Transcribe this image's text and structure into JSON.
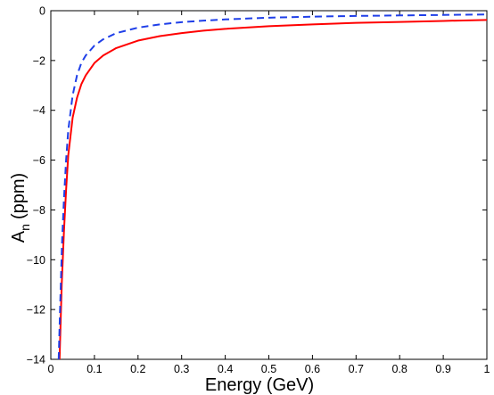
{
  "chart_data": {
    "type": "line",
    "title": "",
    "xlabel": "Energy (GeV)",
    "ylabel": {
      "main": "A",
      "subscript": "n",
      "unit": "(ppm)"
    },
    "xlim": [
      0,
      1
    ],
    "ylim": [
      -14,
      0
    ],
    "x_ticks": [
      0,
      0.1,
      0.2,
      0.3,
      0.4,
      0.5,
      0.6,
      0.7,
      0.8,
      0.9,
      1
    ],
    "x_tick_labels": [
      "0",
      "0.1",
      "0.2",
      "0.3",
      "0.4",
      "0.5",
      "0.6",
      "0.7",
      "0.8",
      "0.9",
      "1"
    ],
    "y_ticks": [
      0,
      -2,
      -4,
      -6,
      -8,
      -10,
      -12,
      -14
    ],
    "y_tick_labels": [
      "0",
      "−2",
      "−4",
      "−6",
      "−8",
      "−10",
      "−12",
      "−14"
    ],
    "grid": false,
    "series": [
      {
        "style": "solid",
        "color": "#ff0000",
        "x": [
          0.02,
          0.025,
          0.03,
          0.035,
          0.04,
          0.05,
          0.06,
          0.07,
          0.08,
          0.1,
          0.12,
          0.15,
          0.2,
          0.25,
          0.3,
          0.35,
          0.4,
          0.5,
          0.6,
          0.7,
          0.8,
          0.9,
          1.0
        ],
        "y": [
          -14.0,
          -11.0,
          -8.9,
          -7.2,
          -5.8,
          -4.3,
          -3.5,
          -2.95,
          -2.6,
          -2.1,
          -1.8,
          -1.5,
          -1.2,
          -1.02,
          -0.9,
          -0.8,
          -0.73,
          -0.62,
          -0.55,
          -0.49,
          -0.45,
          -0.41,
          -0.37
        ]
      },
      {
        "style": "dashed",
        "color": "#1f3fe8",
        "x": [
          0.018,
          0.022,
          0.026,
          0.03,
          0.035,
          0.04,
          0.05,
          0.06,
          0.07,
          0.08,
          0.1,
          0.12,
          0.15,
          0.2,
          0.25,
          0.3,
          0.35,
          0.4,
          0.5,
          0.6,
          0.7,
          0.8,
          0.9,
          1.0
        ],
        "y": [
          -14.0,
          -11.5,
          -9.2,
          -7.6,
          -6.0,
          -4.8,
          -3.4,
          -2.6,
          -2.1,
          -1.8,
          -1.4,
          -1.15,
          -0.9,
          -0.68,
          -0.55,
          -0.46,
          -0.4,
          -0.35,
          -0.28,
          -0.24,
          -0.21,
          -0.19,
          -0.17,
          -0.15
        ]
      }
    ]
  }
}
